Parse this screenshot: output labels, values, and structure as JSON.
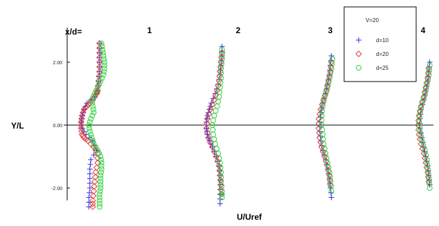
{
  "chart_data": {
    "type": "scatter",
    "title": "",
    "xlabel": "U/Uref",
    "ylabel": "Y/L",
    "station_prefix": "x/d=",
    "stations": [
      {
        "label": "1"
      },
      {
        "label": "2"
      },
      {
        "label": "3"
      },
      {
        "label": "4"
      }
    ],
    "y_ticks": [
      "2.00",
      "0.00",
      "-2.00"
    ],
    "y_tick_values": [
      2,
      0,
      -2
    ],
    "ylim": [
      -2.8,
      3.0
    ],
    "grid": false,
    "legend": {
      "title": "V=20",
      "placement": "top-right",
      "entries": [
        {
          "label": "d=10",
          "marker": "plus",
          "color": "#2b2bd9"
        },
        {
          "label": "d=20",
          "marker": "diamond",
          "color": "#e03a3a"
        },
        {
          "label": "d=25",
          "marker": "circle",
          "color": "#2fcf3f"
        }
      ]
    },
    "profile_offsets": [
      0.3,
      -0.15,
      0.15
    ],
    "series": [
      {
        "name": "d=10",
        "profiles": [
          {
            "station": "1",
            "y": [
              2.6,
              2.3,
              2.0,
              1.7,
              1.4,
              1.1,
              0.9,
              0.7,
              0.5,
              0.3,
              0.1,
              -0.1,
              -0.3,
              -0.5,
              -0.8,
              -1.1,
              -1.4,
              -1.7,
              -2.0,
              -2.3,
              -2.6
            ],
            "u": [
              0.85,
              0.85,
              0.85,
              0.85,
              0.8,
              0.75,
              0.6,
              0.2,
              0.05,
              -0.05,
              -0.1,
              -0.05,
              0.15,
              0.5,
              0.7,
              0.4,
              0.35,
              0.35,
              0.35,
              0.3,
              0.3
            ]
          },
          {
            "station": "2",
            "y": [
              2.5,
              2.2,
              1.9,
              1.6,
              1.3,
              1.0,
              0.7,
              0.5,
              0.3,
              0.1,
              -0.1,
              -0.3,
              -0.5,
              -0.7,
              -1.0,
              -1.3,
              -1.6,
              -1.9,
              -2.2,
              -2.5
            ],
            "u": [
              0.95,
              0.95,
              0.9,
              0.85,
              0.75,
              0.6,
              0.4,
              0.3,
              0.2,
              0.15,
              0.15,
              0.2,
              0.3,
              0.45,
              0.65,
              0.8,
              0.85,
              0.85,
              0.85,
              0.85
            ]
          },
          {
            "station": "3",
            "y": [
              2.2,
              1.9,
              1.6,
              1.3,
              1.0,
              0.7,
              0.4,
              0.1,
              -0.2,
              -0.5,
              -0.8,
              -1.1,
              -1.4,
              -1.7,
              -2.0,
              -2.3
            ],
            "u": [
              0.95,
              0.9,
              0.85,
              0.75,
              0.65,
              0.5,
              0.4,
              0.35,
              0.35,
              0.4,
              0.5,
              0.65,
              0.75,
              0.85,
              0.9,
              0.95
            ]
          },
          {
            "station": "4",
            "y": [
              2.0,
              1.7,
              1.4,
              1.1,
              0.8,
              0.5,
              0.2,
              -0.1,
              -0.4,
              -0.7,
              -1.0,
              -1.3,
              -1.6,
              -1.9
            ],
            "u": [
              0.95,
              0.9,
              0.85,
              0.75,
              0.65,
              0.5,
              0.45,
              0.45,
              0.55,
              0.65,
              0.75,
              0.85,
              0.9,
              0.95
            ]
          }
        ]
      },
      {
        "name": "d=20",
        "profiles": [
          {
            "station": "1",
            "y": [
              2.6,
              2.3,
              2.0,
              1.7,
              1.4,
              1.1,
              1.0,
              0.8,
              0.7,
              0.6,
              0.5,
              0.3,
              0.1,
              -0.1,
              -0.3,
              -0.4,
              -0.5,
              -0.7,
              -0.9,
              -1.2,
              -1.5,
              -1.8,
              -2.1,
              -2.4,
              -2.6
            ],
            "u": [
              0.85,
              0.85,
              0.85,
              0.85,
              0.8,
              0.75,
              0.7,
              0.5,
              0.35,
              0.2,
              0.05,
              -0.05,
              -0.1,
              -0.1,
              -0.05,
              0.05,
              0.25,
              0.55,
              0.75,
              0.75,
              0.65,
              0.6,
              0.55,
              0.5,
              0.5
            ]
          },
          {
            "station": "2",
            "y": [
              2.3,
              2.0,
              1.7,
              1.4,
              1.1,
              0.8,
              0.5,
              0.2,
              -0.1,
              -0.4,
              -0.7,
              -1.0,
              -1.3,
              -1.6,
              -1.9,
              -2.2
            ],
            "u": [
              0.95,
              0.9,
              0.85,
              0.8,
              0.7,
              0.55,
              0.35,
              0.2,
              0.15,
              0.25,
              0.45,
              0.65,
              0.8,
              0.85,
              0.9,
              0.9
            ]
          },
          {
            "station": "3",
            "y": [
              2.0,
              1.7,
              1.4,
              1.1,
              0.8,
              0.5,
              0.2,
              -0.1,
              -0.4,
              -0.7,
              -1.0,
              -1.3,
              -1.6,
              -1.9
            ],
            "u": [
              0.95,
              0.9,
              0.8,
              0.7,
              0.55,
              0.4,
              0.3,
              0.3,
              0.35,
              0.45,
              0.6,
              0.75,
              0.85,
              0.9
            ]
          },
          {
            "station": "4",
            "y": [
              1.8,
              1.5,
              1.2,
              0.9,
              0.6,
              0.3,
              0.0,
              -0.3,
              -0.6,
              -0.9,
              -1.2,
              -1.5,
              -1.8
            ],
            "u": [
              0.9,
              0.85,
              0.75,
              0.65,
              0.5,
              0.4,
              0.35,
              0.4,
              0.5,
              0.65,
              0.75,
              0.85,
              0.9
            ]
          }
        ]
      },
      {
        "name": "d=25",
        "profiles": [
          {
            "station": "1",
            "y": [
              2.6,
              2.4,
              2.2,
              2.0,
              1.8,
              1.6,
              1.4,
              1.2,
              1.0,
              0.8,
              0.6,
              0.4,
              0.2,
              0.0,
              -0.2,
              -0.4,
              -0.6,
              -0.8,
              -1.0,
              -1.2,
              -1.4,
              -1.6,
              -1.8,
              -2.0,
              -2.2,
              -2.4,
              -2.6
            ],
            "u": [
              0.95,
              1.0,
              1.05,
              1.1,
              1.1,
              1.05,
              0.9,
              0.75,
              0.6,
              0.45,
              0.5,
              0.55,
              0.4,
              0.3,
              0.35,
              0.45,
              0.55,
              0.75,
              0.9,
              0.95,
              0.95,
              0.9,
              0.9,
              0.9,
              0.85,
              0.85,
              0.85
            ]
          },
          {
            "station": "2",
            "y": [
              2.4,
              2.1,
              1.8,
              1.5,
              1.2,
              0.9,
              0.6,
              0.3,
              0.0,
              -0.3,
              -0.6,
              -0.9,
              -1.2,
              -1.5,
              -1.8,
              -2.1,
              -2.3
            ],
            "u": [
              0.95,
              0.95,
              0.9,
              0.9,
              0.85,
              0.8,
              0.7,
              0.55,
              0.45,
              0.5,
              0.6,
              0.75,
              0.85,
              0.9,
              0.9,
              0.95,
              0.95
            ]
          },
          {
            "station": "3",
            "y": [
              2.1,
              1.8,
              1.5,
              1.2,
              0.9,
              0.6,
              0.3,
              0.0,
              -0.3,
              -0.6,
              -0.9,
              -1.2,
              -1.5,
              -1.8,
              -2.1
            ],
            "u": [
              1.0,
              0.95,
              0.85,
              0.75,
              0.6,
              0.5,
              0.45,
              0.45,
              0.5,
              0.55,
              0.65,
              0.75,
              0.85,
              0.9,
              0.95
            ]
          },
          {
            "station": "4",
            "y": [
              1.9,
              1.6,
              1.3,
              1.0,
              0.7,
              0.4,
              0.1,
              -0.2,
              -0.5,
              -0.8,
              -1.1,
              -1.4,
              -1.7,
              -2.0
            ],
            "u": [
              0.95,
              0.9,
              0.8,
              0.7,
              0.55,
              0.45,
              0.4,
              0.45,
              0.55,
              0.7,
              0.8,
              0.85,
              0.9,
              0.95
            ]
          }
        ]
      }
    ]
  }
}
